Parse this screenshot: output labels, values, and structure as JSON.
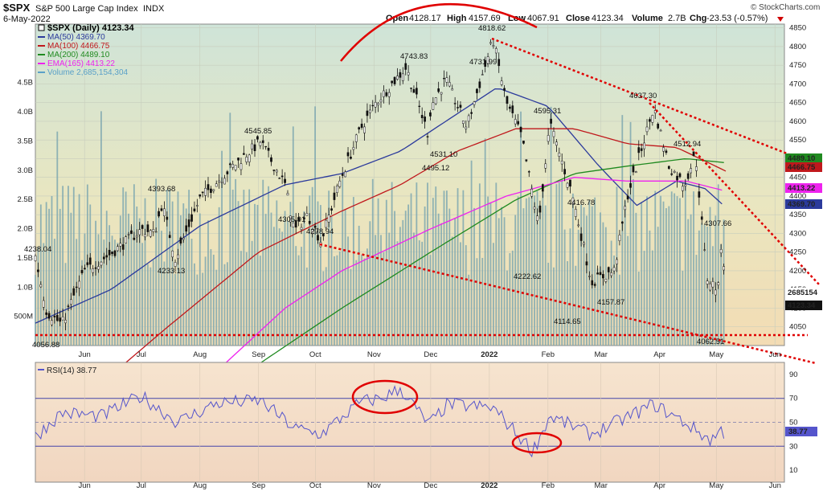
{
  "header": {
    "symbol": "$SPX",
    "name": "S&P 500 Large Cap Index",
    "exchange": "INDX",
    "date": "6-May-2022",
    "open_label": "Open",
    "open": "4128.17",
    "high_label": "High",
    "high": "4157.69",
    "low_label": "Low",
    "low": "4067.91",
    "close_label": "Close",
    "close": "4123.34",
    "volume_label": "Volume",
    "volume": "2.7B",
    "chg_label": "Chg",
    "chg": "-23.53 (-0.57%)",
    "source": "© StockCharts.com"
  },
  "legend": [
    {
      "text": "$SPX (Daily) 4123.34",
      "color": "#000000"
    },
    {
      "text": "MA(50) 4369.70",
      "color": "#2b3a9c"
    },
    {
      "text": "MA(100) 4466.75",
      "color": "#c0181c"
    },
    {
      "text": "MA(200) 4489.10",
      "color": "#208a20"
    },
    {
      "text": "EMA(165) 4413.22",
      "color": "#ee22ee"
    },
    {
      "text": "Volume 2,685,154,304",
      "color": "#5aa0c8"
    }
  ],
  "colors": {
    "price": "#111111",
    "ma50": "#2b3a9c",
    "ma100": "#c0181c",
    "ma200": "#208a20",
    "ema165": "#ee22ee",
    "volume": "#7fa8b0",
    "rsi": "#5555cc",
    "annotation": "#e00000"
  },
  "chart_data": [
    {
      "type": "line",
      "panel": "price",
      "ylim": [
        4000,
        4860
      ],
      "y_ticks": [
        4050,
        4100,
        4150,
        4200,
        4250,
        4300,
        4350,
        4400,
        4450,
        4500,
        4550,
        4600,
        4650,
        4700,
        4750,
        4800,
        4850
      ],
      "x_ticks": [
        "Jun",
        "Jul",
        "Aug",
        "Sep",
        "Oct",
        "Nov",
        "Dec",
        "2022",
        "Feb",
        "Mar",
        "Apr",
        "May",
        "Jun"
      ],
      "x_tick_dates": [
        "2021-06-01",
        "2021-07-01",
        "2021-08-01",
        "2021-09-01",
        "2021-10-01",
        "2021-11-01",
        "2021-12-01",
        "2022-01-01",
        "2022-02-01",
        "2022-03-01",
        "2022-04-01",
        "2022-05-01",
        "2022-06-01"
      ],
      "x_range": [
        "2021-05-06",
        "2022-06-06"
      ],
      "series": [
        {
          "name": "$SPX",
          "style": "ohlc",
          "x": [
            "2021-05-06",
            "2021-05-12",
            "2021-05-20",
            "2021-06-01",
            "2021-06-15",
            "2021-07-01",
            "2021-07-08",
            "2021-07-12",
            "2021-07-19",
            "2021-08-01",
            "2021-08-16",
            "2021-09-02",
            "2021-09-15",
            "2021-09-20",
            "2021-09-27",
            "2021-10-04",
            "2021-10-14",
            "2021-10-25",
            "2021-11-02",
            "2021-11-18",
            "2021-11-30",
            "2021-12-01",
            "2021-12-09",
            "2021-12-20",
            "2022-01-03",
            "2022-01-10",
            "2022-01-18",
            "2022-01-27",
            "2022-02-02",
            "2022-02-14",
            "2022-02-24",
            "2022-03-08",
            "2022-03-15",
            "2022-03-29",
            "2022-04-06",
            "2022-04-14",
            "2022-04-20",
            "2022-04-26",
            "2022-05-02",
            "2022-05-04",
            "2022-05-06"
          ],
          "values": [
            4238.04,
            4090,
            4056.88,
            4200,
            4246,
            4310,
            4300,
            4380,
            4233.13,
            4393.68,
            4468,
            4545.85,
            4430,
            4305.91,
            4350,
            4278.94,
            4440,
            4580,
            4650,
            4743.83,
            4560,
            4640,
            4712,
            4585,
            4818.62,
            4650,
            4560,
            4320,
            4595.31,
            4400,
            4170,
            4200,
            4400,
            4637.3,
            4480,
            4430,
            4512.94,
            4180,
            4150,
            4307.66,
            4123.34
          ]
        },
        {
          "name": "MA(50)",
          "x": [
            "2021-05-06",
            "2021-06-15",
            "2021-08-01",
            "2021-09-15",
            "2021-10-15",
            "2021-11-15",
            "2021-12-15",
            "2022-01-05",
            "2022-02-01",
            "2022-02-28",
            "2022-03-20",
            "2022-04-10",
            "2022-04-25",
            "2022-05-06"
          ],
          "values": [
            4060,
            4150,
            4320,
            4430,
            4460,
            4520,
            4620,
            4690,
            4640,
            4480,
            4375,
            4440,
            4420,
            4369.7
          ]
        },
        {
          "name": "MA(100)",
          "x": [
            "2021-06-01",
            "2021-07-15",
            "2021-09-01",
            "2021-10-15",
            "2021-11-15",
            "2021-12-15",
            "2022-01-15",
            "2022-02-15",
            "2022-03-15",
            "2022-04-10",
            "2022-05-06"
          ],
          "values": [
            3860,
            4050,
            4250,
            4360,
            4430,
            4520,
            4580,
            4580,
            4540,
            4530,
            4466.75
          ]
        },
        {
          "name": "MA(200)",
          "x": [
            "2021-09-01",
            "2021-10-15",
            "2021-12-01",
            "2022-01-15",
            "2022-02-15",
            "2022-03-15",
            "2022-04-15",
            "2022-05-06"
          ],
          "values": [
            3950,
            4100,
            4250,
            4390,
            4460,
            4480,
            4500,
            4489.1
          ]
        },
        {
          "name": "EMA(165)",
          "x": [
            "2021-08-01",
            "2021-09-15",
            "2021-10-15",
            "2021-11-30",
            "2022-01-10",
            "2022-02-15",
            "2022-03-15",
            "2022-04-15",
            "2022-05-06"
          ],
          "values": [
            3890,
            4100,
            4200,
            4310,
            4400,
            4450,
            4440,
            4440,
            4413.22
          ]
        }
      ],
      "annotations": [
        "4238.04",
        "4056.88",
        "4233.13",
        "4393.68",
        "4545.85",
        "4305.91",
        "4278.94",
        "4743.83",
        "4495.12",
        "4531.10",
        "4731.99",
        "4818.62",
        "4595.31",
        "4222.62",
        "4114.65",
        "4157.87",
        "4416.78",
        "4637.30",
        "4512.94",
        "4307.66",
        "4062.51"
      ],
      "right_labels": [
        "4489.10",
        "4466.75",
        "4413.22",
        "4369.70",
        "2685154",
        "4123.34"
      ]
    },
    {
      "type": "bar",
      "panel": "volume",
      "ylim": [
        0,
        5.5
      ],
      "y_ticks": [
        "500M",
        "1.0B",
        "1.5B",
        "2.0B",
        "2.5B",
        "3.0B",
        "3.5B",
        "4.0B",
        "4.5B"
      ],
      "y_tick_values": [
        0.5,
        1.0,
        1.5,
        2.0,
        2.5,
        3.0,
        3.5,
        4.0,
        4.5
      ],
      "approx_level_billions": 2.2,
      "last_value": 2685154304
    },
    {
      "type": "line",
      "panel": "rsi",
      "ylim": [
        0,
        100
      ],
      "y_ticks": [
        "10",
        "30",
        "50",
        "70",
        "90"
      ],
      "y_tick_values": [
        10,
        30,
        50,
        70,
        90
      ],
      "series": [
        {
          "name": "RSI(14)",
          "x": [
            "2021-05-06",
            "2021-05-20",
            "2021-06-10",
            "2021-07-01",
            "2021-07-20",
            "2021-08-10",
            "2021-09-02",
            "2021-09-20",
            "2021-10-04",
            "2021-10-25",
            "2021-11-05",
            "2021-11-15",
            "2021-11-30",
            "2021-12-10",
            "2022-01-03",
            "2022-01-24",
            "2022-02-02",
            "2022-02-24",
            "2022-03-29",
            "2022-04-14",
            "2022-04-28",
            "2022-05-04",
            "2022-05-06"
          ],
          "values": [
            38,
            58,
            55,
            72,
            50,
            66,
            68,
            45,
            40,
            67,
            70,
            78,
            48,
            65,
            62,
            26,
            55,
            40,
            65,
            50,
            35,
            44,
            38.77
          ]
        }
      ],
      "legend": "RSI(14) 38.77",
      "x_ticks": [
        "Jun",
        "Jul",
        "Aug",
        "Sep",
        "Oct",
        "Nov",
        "Dec",
        "2022",
        "Feb",
        "Mar",
        "Apr",
        "May",
        "Jun"
      ]
    }
  ]
}
